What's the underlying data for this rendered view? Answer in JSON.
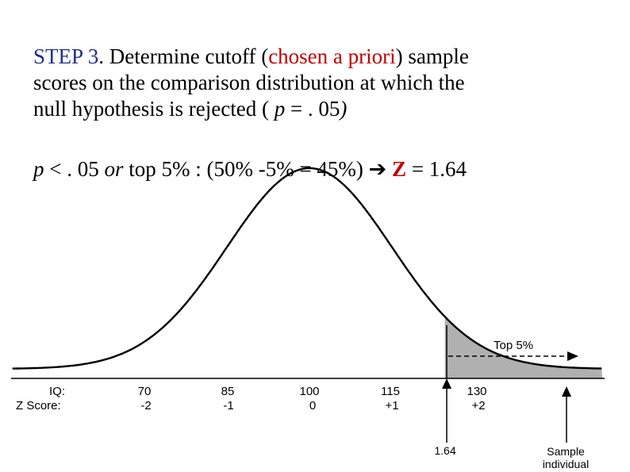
{
  "heading": {
    "step": "STEP 3",
    "text_a": ". Determine cutoff (",
    "highlight": "chosen a priori",
    "text_b": ") sample",
    "line2": "scores on the comparison distribution at which the",
    "line3_a": "null hypothesis is rejected ( ",
    "line3_p": "p",
    "line3_b": " = . 05",
    "line3_c": ")"
  },
  "formula": {
    "p": "p",
    "lt": " < . 05 ",
    "or": "or",
    "rest": " top 5% : (50% -5% = 45%) ",
    "arrow": "➔",
    "z": "Z",
    "z_value": " = 1.64"
  },
  "diagram": {
    "top_label": "Top 5%",
    "iq_heading": "IQ:",
    "z_heading": "Z Score:",
    "iq_ticks": [
      "70",
      "85",
      "100",
      "115",
      "130"
    ],
    "z_ticks": [
      "-2",
      "-1",
      "0",
      "+1",
      "+2"
    ],
    "cutoff_label": "1.64",
    "sample_label_1": "Sample",
    "sample_label_2": "individual",
    "colors": {
      "curve": "#000000",
      "shade": "#b0b0b0",
      "text_red": "#c00000",
      "text_blue": "#1f2f8f"
    }
  }
}
